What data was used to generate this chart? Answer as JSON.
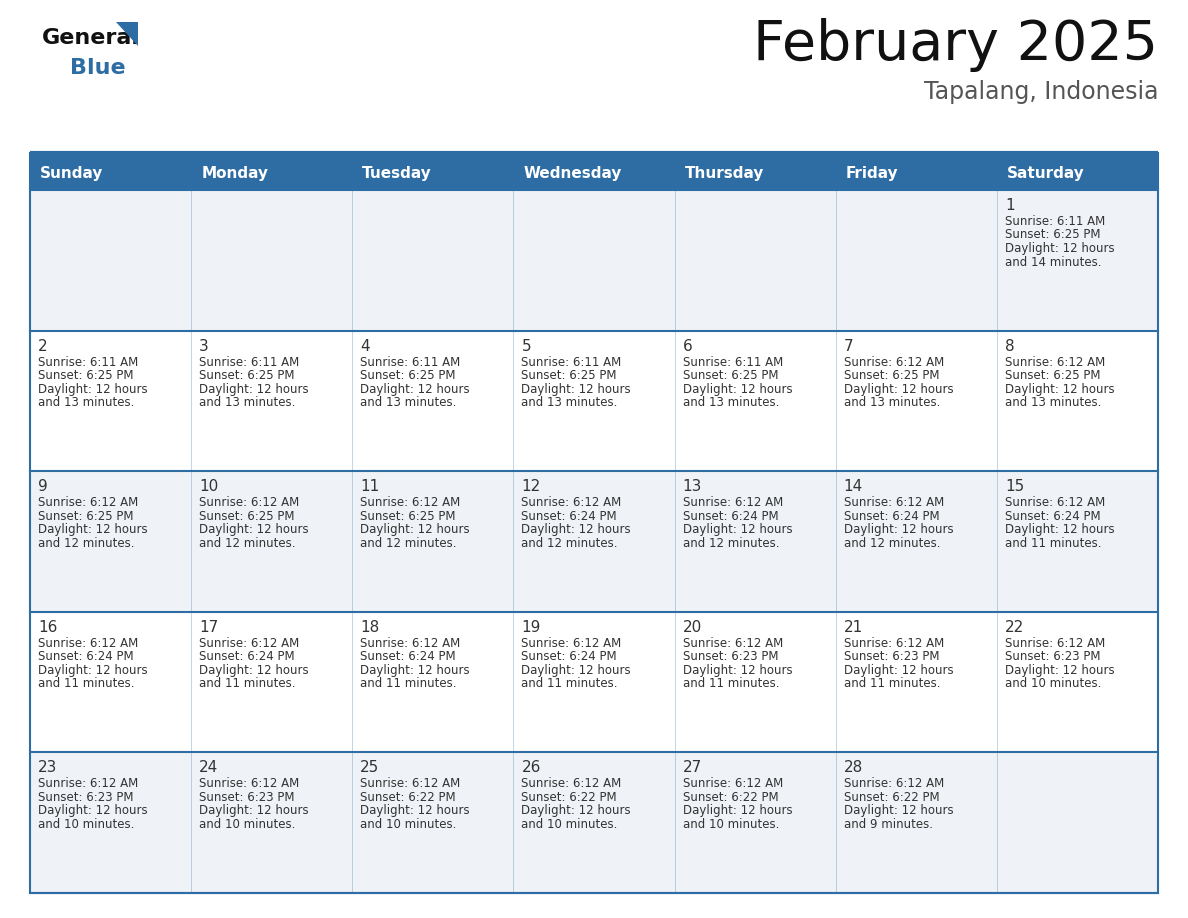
{
  "title": "February 2025",
  "subtitle": "Tapalang, Indonesia",
  "header_bg": "#2E6DA4",
  "header_text_color": "#FFFFFF",
  "cell_bg_odd": "#F0F4F8",
  "cell_bg_even": "#FFFFFF",
  "border_color": "#2E6DA4",
  "text_color": "#333333",
  "day_headers": [
    "Sunday",
    "Monday",
    "Tuesday",
    "Wednesday",
    "Thursday",
    "Friday",
    "Saturday"
  ],
  "weeks": [
    [
      null,
      null,
      null,
      null,
      null,
      null,
      {
        "day": 1,
        "sunrise": "6:11 AM",
        "sunset": "6:25 PM",
        "daylight": "12 hours",
        "daylight2": "and 14 minutes."
      }
    ],
    [
      {
        "day": 2,
        "sunrise": "6:11 AM",
        "sunset": "6:25 PM",
        "daylight": "12 hours",
        "daylight2": "and 13 minutes."
      },
      {
        "day": 3,
        "sunrise": "6:11 AM",
        "sunset": "6:25 PM",
        "daylight": "12 hours",
        "daylight2": "and 13 minutes."
      },
      {
        "day": 4,
        "sunrise": "6:11 AM",
        "sunset": "6:25 PM",
        "daylight": "12 hours",
        "daylight2": "and 13 minutes."
      },
      {
        "day": 5,
        "sunrise": "6:11 AM",
        "sunset": "6:25 PM",
        "daylight": "12 hours",
        "daylight2": "and 13 minutes."
      },
      {
        "day": 6,
        "sunrise": "6:11 AM",
        "sunset": "6:25 PM",
        "daylight": "12 hours",
        "daylight2": "and 13 minutes."
      },
      {
        "day": 7,
        "sunrise": "6:12 AM",
        "sunset": "6:25 PM",
        "daylight": "12 hours",
        "daylight2": "and 13 minutes."
      },
      {
        "day": 8,
        "sunrise": "6:12 AM",
        "sunset": "6:25 PM",
        "daylight": "12 hours",
        "daylight2": "and 13 minutes."
      }
    ],
    [
      {
        "day": 9,
        "sunrise": "6:12 AM",
        "sunset": "6:25 PM",
        "daylight": "12 hours",
        "daylight2": "and 12 minutes."
      },
      {
        "day": 10,
        "sunrise": "6:12 AM",
        "sunset": "6:25 PM",
        "daylight": "12 hours",
        "daylight2": "and 12 minutes."
      },
      {
        "day": 11,
        "sunrise": "6:12 AM",
        "sunset": "6:25 PM",
        "daylight": "12 hours",
        "daylight2": "and 12 minutes."
      },
      {
        "day": 12,
        "sunrise": "6:12 AM",
        "sunset": "6:24 PM",
        "daylight": "12 hours",
        "daylight2": "and 12 minutes."
      },
      {
        "day": 13,
        "sunrise": "6:12 AM",
        "sunset": "6:24 PM",
        "daylight": "12 hours",
        "daylight2": "and 12 minutes."
      },
      {
        "day": 14,
        "sunrise": "6:12 AM",
        "sunset": "6:24 PM",
        "daylight": "12 hours",
        "daylight2": "and 12 minutes."
      },
      {
        "day": 15,
        "sunrise": "6:12 AM",
        "sunset": "6:24 PM",
        "daylight": "12 hours",
        "daylight2": "and 11 minutes."
      }
    ],
    [
      {
        "day": 16,
        "sunrise": "6:12 AM",
        "sunset": "6:24 PM",
        "daylight": "12 hours",
        "daylight2": "and 11 minutes."
      },
      {
        "day": 17,
        "sunrise": "6:12 AM",
        "sunset": "6:24 PM",
        "daylight": "12 hours",
        "daylight2": "and 11 minutes."
      },
      {
        "day": 18,
        "sunrise": "6:12 AM",
        "sunset": "6:24 PM",
        "daylight": "12 hours",
        "daylight2": "and 11 minutes."
      },
      {
        "day": 19,
        "sunrise": "6:12 AM",
        "sunset": "6:24 PM",
        "daylight": "12 hours",
        "daylight2": "and 11 minutes."
      },
      {
        "day": 20,
        "sunrise": "6:12 AM",
        "sunset": "6:23 PM",
        "daylight": "12 hours",
        "daylight2": "and 11 minutes."
      },
      {
        "day": 21,
        "sunrise": "6:12 AM",
        "sunset": "6:23 PM",
        "daylight": "12 hours",
        "daylight2": "and 11 minutes."
      },
      {
        "day": 22,
        "sunrise": "6:12 AM",
        "sunset": "6:23 PM",
        "daylight": "12 hours",
        "daylight2": "and 10 minutes."
      }
    ],
    [
      {
        "day": 23,
        "sunrise": "6:12 AM",
        "sunset": "6:23 PM",
        "daylight": "12 hours",
        "daylight2": "and 10 minutes."
      },
      {
        "day": 24,
        "sunrise": "6:12 AM",
        "sunset": "6:23 PM",
        "daylight": "12 hours",
        "daylight2": "and 10 minutes."
      },
      {
        "day": 25,
        "sunrise": "6:12 AM",
        "sunset": "6:22 PM",
        "daylight": "12 hours",
        "daylight2": "and 10 minutes."
      },
      {
        "day": 26,
        "sunrise": "6:12 AM",
        "sunset": "6:22 PM",
        "daylight": "12 hours",
        "daylight2": "and 10 minutes."
      },
      {
        "day": 27,
        "sunrise": "6:12 AM",
        "sunset": "6:22 PM",
        "daylight": "12 hours",
        "daylight2": "and 10 minutes."
      },
      {
        "day": 28,
        "sunrise": "6:12 AM",
        "sunset": "6:22 PM",
        "daylight": "12 hours",
        "daylight2": "and 9 minutes."
      },
      null
    ]
  ]
}
